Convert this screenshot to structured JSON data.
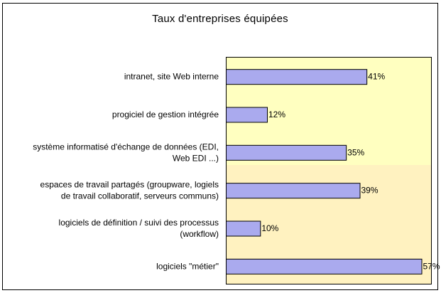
{
  "chart_data": {
    "type": "bar",
    "orientation": "horizontal",
    "title": "Taux d'entreprises équipées",
    "categories": [
      [
        "intranet, site Web interne"
      ],
      [
        "progiciel de gestion intégrée"
      ],
      [
        "système informatisé d'échange de données (EDI,",
        "Web EDI ...)"
      ],
      [
        "espaces de travail partagés (groupware, logiels",
        "de travail collaboratif, serveurs communs)"
      ],
      [
        "logiciels de définition / suivi des processus",
        "(workflow)"
      ],
      [
        "logiciels \"métier\""
      ]
    ],
    "values": [
      41,
      12,
      35,
      39,
      10,
      57
    ],
    "value_labels": [
      "41%",
      "12%",
      "35%",
      "39%",
      "10%",
      "57%"
    ],
    "xlim": [
      0,
      60
    ],
    "grid": false,
    "legend": "none",
    "colors": {
      "bar_fill": "#aaaaee",
      "bar_stroke": "#000000",
      "plot_bg_top": "#ffffc0",
      "plot_bg_bottom": "#fff2c0",
      "plot_border": "#000000"
    }
  }
}
